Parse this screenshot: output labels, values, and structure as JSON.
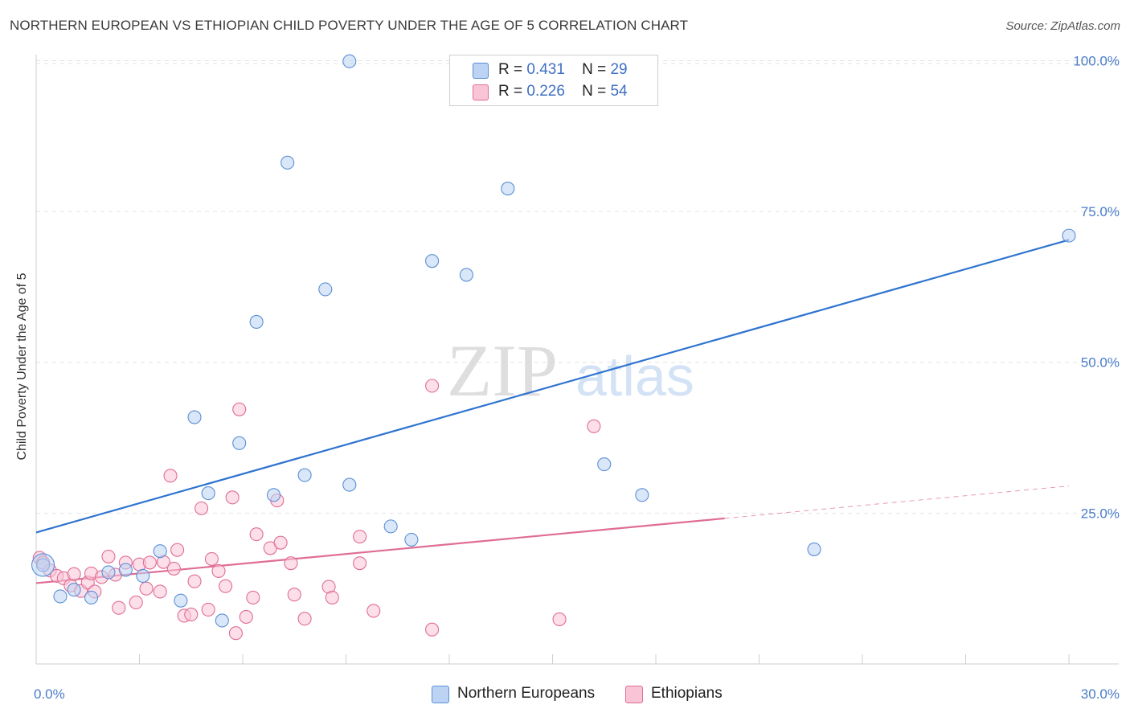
{
  "title": "NORTHERN EUROPEAN VS ETHIOPIAN CHILD POVERTY UNDER THE AGE OF 5 CORRELATION CHART",
  "source": "Source: ZipAtlas.com",
  "watermark": {
    "zip": "ZIP",
    "atlas": "atlas"
  },
  "legend": {
    "r_label": "R =",
    "n_label": "N =",
    "rows": [
      {
        "r": "0.431",
        "n": "29"
      },
      {
        "r": "0.226",
        "n": "54"
      }
    ]
  },
  "chart_data": {
    "type": "scatter",
    "title": "NORTHERN EUROPEAN VS ETHIOPIAN CHILD POVERTY UNDER THE AGE OF 5 CORRELATION CHART",
    "xlabel": "",
    "ylabel": "Child Poverty Under the Age of 5",
    "xlim": [
      0,
      30
    ],
    "ylim": [
      0,
      105
    ],
    "x_tick_labels": [
      {
        "value": 0,
        "label": "0.0%"
      },
      {
        "value": 30,
        "label": "30.0%"
      }
    ],
    "y_tick_labels": [
      {
        "value": 25,
        "label": "25.0%"
      },
      {
        "value": 50,
        "label": "50.0%"
      },
      {
        "value": 75,
        "label": "75.0%"
      },
      {
        "value": 100,
        "label": "100.0%"
      }
    ],
    "grid": true,
    "series": [
      {
        "name": "Northern Europeans",
        "color": "#5b8fd6",
        "fill": "#bcd3f3",
        "r": 0.431,
        "n": 29,
        "trend": {
          "x0": 0,
          "y0": 21.8,
          "x1": 30,
          "y1": 70.3,
          "dashed_from": null
        },
        "points": [
          [
            0.2,
            16.4
          ],
          [
            0.7,
            11.2
          ],
          [
            1.1,
            12.3
          ],
          [
            1.6,
            11.0
          ],
          [
            2.1,
            15.2
          ],
          [
            2.6,
            15.6
          ],
          [
            3.1,
            14.6
          ],
          [
            3.6,
            18.7
          ],
          [
            4.2,
            10.5
          ],
          [
            4.6,
            40.9
          ],
          [
            5.0,
            28.3
          ],
          [
            5.4,
            7.2
          ],
          [
            5.9,
            36.6
          ],
          [
            6.4,
            56.7
          ],
          [
            6.9,
            28.0
          ],
          [
            7.3,
            83.1
          ],
          [
            7.8,
            31.3
          ],
          [
            8.4,
            62.1
          ],
          [
            9.1,
            29.7
          ],
          [
            9.1,
            99.9
          ],
          [
            10.3,
            22.8
          ],
          [
            10.9,
            20.6
          ],
          [
            11.5,
            66.8
          ],
          [
            12.5,
            64.5
          ],
          [
            13.7,
            78.8
          ],
          [
            16.5,
            33.1
          ],
          [
            17.6,
            28.0
          ],
          [
            22.6,
            19.0
          ],
          [
            30.0,
            71.0
          ]
        ]
      },
      {
        "name": "Ethiopians",
        "color": "#e06d96",
        "fill": "#f9c4d5",
        "r": 0.226,
        "n": 54,
        "trend": {
          "x0": 0,
          "y0": 13.4,
          "x1": 30,
          "y1": 29.5,
          "dashed_from": 20.0
        },
        "points": [
          [
            0.1,
            17.6
          ],
          [
            0.2,
            16.8
          ],
          [
            0.4,
            15.5
          ],
          [
            0.6,
            14.6
          ],
          [
            0.8,
            14.2
          ],
          [
            1.0,
            13.0
          ],
          [
            1.1,
            14.9
          ],
          [
            1.3,
            12.1
          ],
          [
            1.5,
            13.5
          ],
          [
            1.6,
            15.0
          ],
          [
            1.7,
            12.0
          ],
          [
            1.9,
            14.4
          ],
          [
            2.1,
            17.8
          ],
          [
            2.3,
            14.8
          ],
          [
            2.4,
            9.3
          ],
          [
            2.6,
            16.8
          ],
          [
            2.9,
            10.2
          ],
          [
            3.0,
            16.5
          ],
          [
            3.2,
            12.5
          ],
          [
            3.3,
            16.8
          ],
          [
            3.6,
            12.0
          ],
          [
            3.7,
            16.9
          ],
          [
            3.9,
            31.2
          ],
          [
            4.0,
            15.8
          ],
          [
            4.1,
            18.9
          ],
          [
            4.3,
            8.0
          ],
          [
            4.5,
            8.2
          ],
          [
            4.6,
            13.7
          ],
          [
            4.8,
            25.8
          ],
          [
            5.0,
            9.0
          ],
          [
            5.1,
            17.4
          ],
          [
            5.3,
            15.4
          ],
          [
            5.5,
            12.9
          ],
          [
            5.7,
            27.6
          ],
          [
            5.8,
            5.1
          ],
          [
            5.9,
            42.2
          ],
          [
            6.1,
            7.8
          ],
          [
            6.3,
            11.0
          ],
          [
            6.4,
            21.5
          ],
          [
            6.8,
            19.2
          ],
          [
            7.0,
            27.1
          ],
          [
            7.1,
            20.1
          ],
          [
            7.4,
            16.7
          ],
          [
            7.5,
            11.5
          ],
          [
            7.8,
            7.5
          ],
          [
            8.5,
            12.8
          ],
          [
            8.6,
            11.0
          ],
          [
            9.4,
            21.1
          ],
          [
            9.4,
            16.7
          ],
          [
            9.8,
            8.8
          ],
          [
            11.5,
            5.7
          ],
          [
            11.5,
            46.1
          ],
          [
            15.2,
            7.4
          ],
          [
            16.2,
            39.4
          ]
        ]
      }
    ]
  },
  "bottom_legend": [
    {
      "label": "Northern Europeans"
    },
    {
      "label": "Ethiopians"
    }
  ]
}
